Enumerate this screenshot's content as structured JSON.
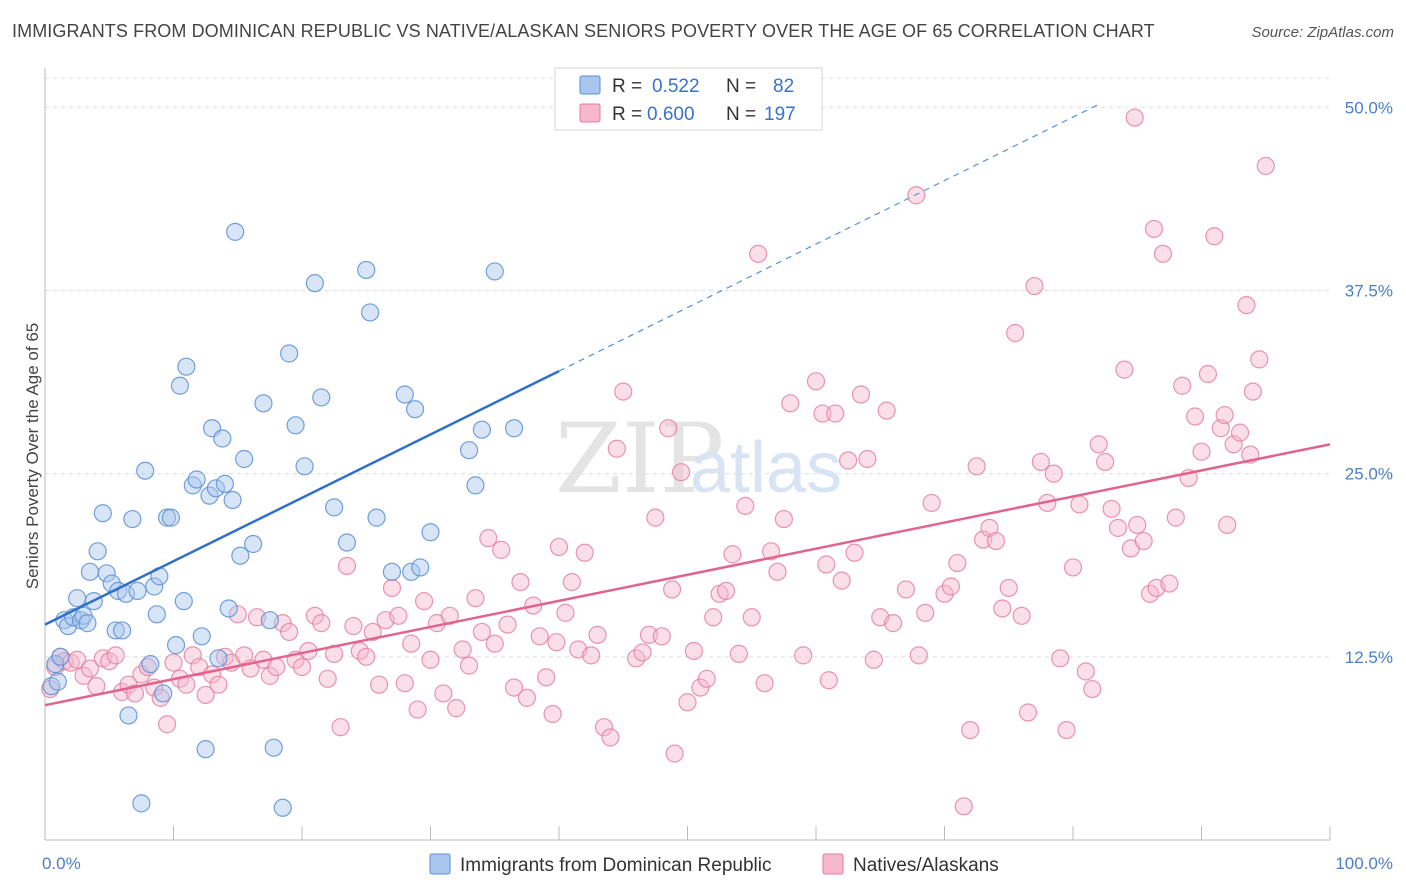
{
  "title": "IMMIGRANTS FROM DOMINICAN REPUBLIC VS NATIVE/ALASKAN SENIORS POVERTY OVER THE AGE OF 65 CORRELATION CHART",
  "source": "Source: ZipAtlas.com",
  "watermark": {
    "zip": "ZIP",
    "atlas": "atlas"
  },
  "colors": {
    "blue_fill": "#a8c6ee",
    "blue_stroke": "#5b8fd6",
    "blue_line": "#2f6fcc",
    "pink_fill": "#f6b9cb",
    "pink_stroke": "#e37c9c",
    "pink_line": "#e2638f",
    "grid": "#dddddd",
    "tick_label": "#4a7fc9"
  },
  "legend": {
    "r_label": "R =",
    "n_label": "N =",
    "series": [
      {
        "r": "0.522",
        "n": "82"
      },
      {
        "r": "0.600",
        "n": "197"
      }
    ]
  },
  "chart_data": {
    "type": "scatter",
    "ylabel": "Seniors Poverty Over the Age of 65",
    "xlim": [
      0,
      100
    ],
    "ylim": [
      0,
      52
    ],
    "x_tick_labels": [
      "0.0%",
      "100.0%"
    ],
    "y_ticks": [
      12.5,
      25.0,
      37.5,
      50.0
    ],
    "y_tick_labels": [
      "12.5%",
      "25.0%",
      "37.5%",
      "50.0%"
    ],
    "grid": true,
    "series": [
      {
        "name": "Immigrants from Dominican Republic",
        "color": "blue",
        "trend": {
          "x0": 0,
          "y0": 14.7,
          "x1": 40,
          "y1": 32.0,
          "dash_to_x": 82,
          "dash_to_y": 50.2
        },
        "points": [
          [
            0.5,
            10.5
          ],
          [
            0.8,
            12.0
          ],
          [
            1.2,
            12.5
          ],
          [
            1.0,
            10.8
          ],
          [
            1.5,
            15.0
          ],
          [
            1.8,
            14.6
          ],
          [
            2.2,
            15.2
          ],
          [
            2.5,
            16.5
          ],
          [
            2.8,
            15.0
          ],
          [
            3.0,
            15.3
          ],
          [
            3.3,
            14.8
          ],
          [
            3.5,
            18.3
          ],
          [
            3.8,
            16.3
          ],
          [
            4.1,
            19.7
          ],
          [
            4.5,
            22.3
          ],
          [
            4.8,
            18.2
          ],
          [
            5.2,
            17.5
          ],
          [
            5.5,
            14.3
          ],
          [
            5.7,
            17.0
          ],
          [
            6.0,
            14.3
          ],
          [
            6.3,
            16.8
          ],
          [
            6.5,
            8.5
          ],
          [
            6.8,
            21.9
          ],
          [
            7.2,
            17.0
          ],
          [
            7.5,
            2.5
          ],
          [
            7.8,
            25.2
          ],
          [
            8.2,
            12.0
          ],
          [
            8.5,
            17.3
          ],
          [
            8.7,
            15.4
          ],
          [
            8.9,
            18.0
          ],
          [
            9.2,
            10.0
          ],
          [
            9.5,
            22.0
          ],
          [
            9.8,
            22.0
          ],
          [
            10.2,
            13.3
          ],
          [
            10.5,
            31.0
          ],
          [
            10.8,
            16.3
          ],
          [
            11.0,
            32.3
          ],
          [
            11.5,
            24.2
          ],
          [
            11.8,
            24.6
          ],
          [
            12.2,
            13.9
          ],
          [
            12.5,
            6.2
          ],
          [
            12.8,
            23.5
          ],
          [
            13.0,
            28.1
          ],
          [
            13.3,
            24.0
          ],
          [
            13.5,
            12.4
          ],
          [
            13.8,
            27.4
          ],
          [
            14.0,
            24.3
          ],
          [
            14.3,
            15.8
          ],
          [
            14.6,
            23.2
          ],
          [
            14.8,
            41.5
          ],
          [
            15.2,
            19.4
          ],
          [
            15.5,
            26.0
          ],
          [
            16.2,
            20.2
          ],
          [
            17.0,
            29.8
          ],
          [
            17.5,
            15.0
          ],
          [
            17.8,
            6.3
          ],
          [
            18.5,
            2.2
          ],
          [
            19.0,
            33.2
          ],
          [
            19.5,
            28.3
          ],
          [
            20.2,
            25.5
          ],
          [
            21.0,
            38.0
          ],
          [
            21.5,
            30.2
          ],
          [
            22.5,
            22.7
          ],
          [
            23.5,
            20.3
          ],
          [
            25.0,
            38.9
          ],
          [
            25.3,
            36.0
          ],
          [
            25.8,
            22.0
          ],
          [
            27.0,
            18.3
          ],
          [
            28.0,
            30.4
          ],
          [
            28.5,
            18.3
          ],
          [
            28.8,
            29.4
          ],
          [
            29.2,
            18.6
          ],
          [
            30.0,
            21.0
          ],
          [
            33.0,
            26.6
          ],
          [
            33.5,
            24.2
          ],
          [
            34.0,
            28.0
          ],
          [
            35.0,
            38.8
          ],
          [
            36.5,
            28.1
          ]
        ]
      },
      {
        "name": "Natives/Alaskans",
        "color": "pink",
        "trend": {
          "x0": 0,
          "y0": 9.2,
          "x1": 100,
          "y1": 27.0
        },
        "points": [
          [
            0.4,
            10.3
          ],
          [
            0.8,
            11.8
          ],
          [
            1.2,
            12.5
          ],
          [
            1.5,
            12.2
          ],
          [
            2.0,
            12.1
          ],
          [
            2.5,
            12.3
          ],
          [
            3.0,
            11.2
          ],
          [
            3.5,
            11.7
          ],
          [
            4.0,
            10.5
          ],
          [
            4.5,
            12.4
          ],
          [
            5.0,
            12.2
          ],
          [
            5.5,
            12.6
          ],
          [
            6.0,
            10.1
          ],
          [
            6.5,
            10.6
          ],
          [
            7.0,
            10.0
          ],
          [
            7.5,
            11.3
          ],
          [
            8.0,
            11.8
          ],
          [
            8.5,
            10.4
          ],
          [
            9.0,
            9.7
          ],
          [
            9.5,
            7.9
          ],
          [
            10.0,
            12.1
          ],
          [
            10.5,
            11.0
          ],
          [
            11.0,
            10.6
          ],
          [
            11.5,
            12.6
          ],
          [
            12.0,
            11.8
          ],
          [
            12.5,
            9.9
          ],
          [
            13.0,
            11.3
          ],
          [
            13.5,
            10.6
          ],
          [
            14.0,
            12.5
          ],
          [
            14.5,
            12.1
          ],
          [
            15.0,
            15.4
          ],
          [
            15.5,
            12.6
          ],
          [
            16.0,
            11.7
          ],
          [
            16.5,
            15.2
          ],
          [
            17.0,
            12.3
          ],
          [
            17.5,
            11.2
          ],
          [
            18.0,
            11.8
          ],
          [
            18.5,
            14.8
          ],
          [
            19.0,
            14.2
          ],
          [
            19.5,
            12.3
          ],
          [
            20.0,
            11.8
          ],
          [
            20.5,
            12.9
          ],
          [
            21.0,
            15.3
          ],
          [
            21.5,
            14.8
          ],
          [
            22.0,
            11.0
          ],
          [
            22.5,
            12.7
          ],
          [
            23.0,
            7.7
          ],
          [
            23.5,
            18.7
          ],
          [
            24.0,
            14.6
          ],
          [
            24.5,
            12.9
          ],
          [
            25.0,
            12.5
          ],
          [
            25.5,
            14.2
          ],
          [
            26.0,
            10.6
          ],
          [
            26.5,
            15.0
          ],
          [
            27.0,
            17.2
          ],
          [
            27.5,
            15.3
          ],
          [
            28.0,
            10.7
          ],
          [
            28.5,
            13.4
          ],
          [
            29.0,
            8.9
          ],
          [
            29.5,
            16.3
          ],
          [
            30.0,
            12.3
          ],
          [
            30.5,
            14.8
          ],
          [
            31.0,
            10.0
          ],
          [
            31.5,
            15.3
          ],
          [
            32.0,
            9.0
          ],
          [
            32.5,
            13.0
          ],
          [
            33.0,
            11.9
          ],
          [
            33.5,
            16.5
          ],
          [
            34.0,
            14.2
          ],
          [
            34.5,
            20.6
          ],
          [
            35.0,
            13.4
          ],
          [
            35.5,
            19.8
          ],
          [
            36.0,
            14.7
          ],
          [
            36.5,
            10.4
          ],
          [
            37.0,
            17.6
          ],
          [
            37.5,
            9.7
          ],
          [
            38.0,
            16.0
          ],
          [
            38.5,
            13.9
          ],
          [
            39.0,
            11.1
          ],
          [
            39.5,
            8.6
          ],
          [
            40.0,
            20.0
          ],
          [
            40.5,
            15.5
          ],
          [
            41.0,
            17.6
          ],
          [
            41.5,
            13.0
          ],
          [
            42.0,
            19.6
          ],
          [
            42.5,
            12.6
          ],
          [
            43.0,
            14.0
          ],
          [
            43.5,
            7.7
          ],
          [
            44.0,
            7.0
          ],
          [
            44.5,
            26.7
          ],
          [
            45.0,
            30.6
          ],
          [
            46.0,
            12.4
          ],
          [
            46.5,
            12.8
          ],
          [
            47.0,
            14.0
          ],
          [
            47.5,
            22.0
          ],
          [
            48.0,
            13.9
          ],
          [
            48.5,
            28.1
          ],
          [
            49.0,
            5.9
          ],
          [
            49.5,
            25.1
          ],
          [
            50.0,
            9.4
          ],
          [
            50.5,
            12.9
          ],
          [
            51.0,
            10.4
          ],
          [
            51.5,
            11.0
          ],
          [
            52.0,
            15.2
          ],
          [
            52.5,
            16.8
          ],
          [
            53.0,
            17.0
          ],
          [
            53.5,
            19.5
          ],
          [
            54.0,
            12.7
          ],
          [
            54.5,
            22.8
          ],
          [
            55.0,
            15.2
          ],
          [
            55.5,
            40.0
          ],
          [
            56.0,
            10.7
          ],
          [
            56.5,
            19.7
          ],
          [
            57.0,
            18.3
          ],
          [
            57.5,
            21.9
          ],
          [
            58.0,
            29.8
          ],
          [
            59.0,
            12.6
          ],
          [
            60.0,
            31.3
          ],
          [
            60.5,
            29.1
          ],
          [
            61.0,
            10.9
          ],
          [
            61.5,
            29.1
          ],
          [
            62.0,
            17.7
          ],
          [
            62.5,
            25.9
          ],
          [
            63.0,
            19.6
          ],
          [
            63.5,
            30.4
          ],
          [
            64.0,
            26.0
          ],
          [
            64.5,
            12.3
          ],
          [
            65.0,
            15.2
          ],
          [
            65.5,
            29.3
          ],
          [
            66.0,
            14.8
          ],
          [
            67.0,
            17.1
          ],
          [
            68.0,
            12.6
          ],
          [
            68.5,
            15.5
          ],
          [
            69.0,
            23.0
          ],
          [
            70.0,
            16.8
          ],
          [
            70.5,
            17.3
          ],
          [
            71.0,
            18.9
          ],
          [
            71.5,
            2.3
          ],
          [
            72.0,
            7.5
          ],
          [
            72.5,
            25.5
          ],
          [
            73.0,
            20.5
          ],
          [
            73.5,
            21.3
          ],
          [
            74.0,
            20.4
          ],
          [
            74.5,
            15.8
          ],
          [
            75.0,
            17.2
          ],
          [
            75.5,
            34.6
          ],
          [
            76.0,
            15.3
          ],
          [
            76.5,
            8.7
          ],
          [
            77.0,
            37.8
          ],
          [
            77.5,
            25.8
          ],
          [
            78.0,
            23.0
          ],
          [
            78.5,
            25.0
          ],
          [
            79.0,
            12.4
          ],
          [
            79.5,
            7.5
          ],
          [
            80.0,
            18.6
          ],
          [
            80.5,
            22.9
          ],
          [
            81.0,
            11.5
          ],
          [
            81.5,
            10.3
          ],
          [
            82.0,
            27.0
          ],
          [
            82.5,
            25.8
          ],
          [
            83.0,
            22.6
          ],
          [
            83.5,
            21.3
          ],
          [
            84.0,
            32.1
          ],
          [
            84.5,
            19.9
          ],
          [
            85.0,
            21.5
          ],
          [
            85.5,
            20.4
          ],
          [
            86.0,
            16.8
          ],
          [
            86.5,
            17.2
          ],
          [
            87.0,
            40.0
          ],
          [
            87.5,
            17.5
          ],
          [
            88.0,
            22.0
          ],
          [
            88.5,
            31.0
          ],
          [
            89.0,
            24.7
          ],
          [
            89.5,
            28.9
          ],
          [
            90.0,
            26.5
          ],
          [
            90.5,
            31.8
          ],
          [
            91.0,
            41.2
          ],
          [
            91.5,
            28.1
          ],
          [
            92.0,
            21.5
          ],
          [
            92.5,
            27.0
          ],
          [
            93.0,
            27.8
          ],
          [
            93.5,
            36.5
          ],
          [
            94.0,
            30.6
          ],
          [
            94.5,
            32.8
          ],
          [
            95.0,
            46.0
          ],
          [
            86.3,
            41.7
          ],
          [
            91.8,
            29.0
          ],
          [
            93.8,
            26.3
          ],
          [
            84.8,
            49.3
          ],
          [
            60.8,
            18.8
          ],
          [
            39.8,
            13.5
          ],
          [
            48.8,
            17.1
          ],
          [
            67.8,
            44.0
          ]
        ]
      }
    ]
  },
  "bottom_legend": [
    "Immigrants from Dominican Republic",
    "Natives/Alaskans"
  ]
}
